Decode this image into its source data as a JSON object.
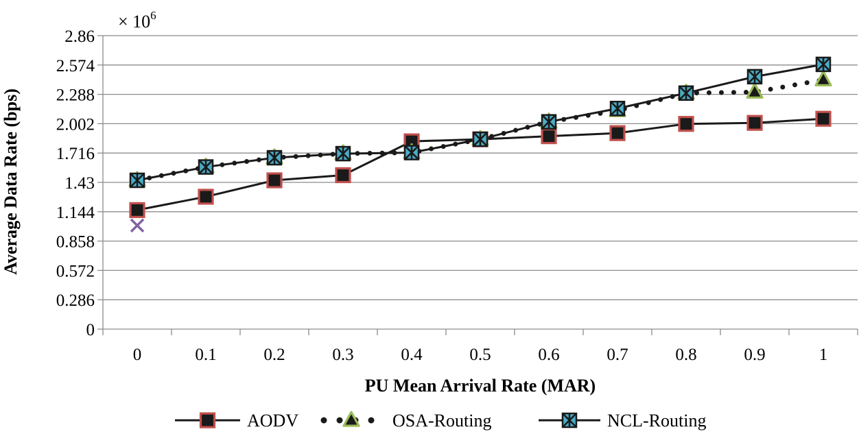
{
  "chart_data": {
    "type": "line",
    "multiplier_label": "× 10",
    "multiplier_exponent": "6",
    "xlabel": "PU Mean Arrival Rate (MAR)",
    "ylabel": "Average Data Rate (bps)",
    "x": [
      0,
      0.1,
      0.2,
      0.3,
      0.4,
      0.5,
      0.6,
      0.7,
      0.8,
      0.9,
      1
    ],
    "x_tick_labels": [
      "0",
      "0.1",
      "0.2",
      "0.3",
      "0.4",
      "0.5",
      "0.6",
      "0.7",
      "0.8",
      "0.9",
      "1"
    ],
    "y_ticks": [
      0,
      0.286,
      0.572,
      0.858,
      1.144,
      1.43,
      1.716,
      2.002,
      2.288,
      2.574,
      2.86
    ],
    "y_tick_labels": [
      "0",
      "0.286",
      "0.572",
      "0.858",
      "1.144",
      "1.43",
      "1.716",
      "2.002",
      "2.288",
      "2.574",
      "2.86"
    ],
    "ylim": [
      0,
      2.86
    ],
    "grid": true,
    "legend_position": "bottom",
    "series": [
      {
        "name": "AODV",
        "line_style": "solid",
        "marker": "square",
        "marker_fill": "#1a1a1a",
        "marker_edge": "#c0504d",
        "values": [
          1.16,
          1.29,
          1.45,
          1.5,
          1.83,
          1.85,
          1.88,
          1.91,
          2.0,
          2.01,
          2.05
        ]
      },
      {
        "name": "OSA-Routing",
        "line_style": "dotted",
        "marker": "triangle",
        "marker_fill": "#1a1a1a",
        "marker_edge": "#9bbb59",
        "values": [
          1.45,
          1.58,
          1.67,
          1.71,
          1.72,
          1.85,
          2.02,
          2.13,
          2.3,
          2.31,
          2.43
        ]
      },
      {
        "name": "NCL-Routing",
        "line_style": "solid",
        "marker": "star",
        "marker_fill": "#1a1a1a",
        "marker_edge": "#4bacc6",
        "values": [
          1.45,
          1.58,
          1.67,
          1.71,
          1.72,
          1.85,
          2.02,
          2.15,
          2.3,
          2.46,
          2.58
        ]
      }
    ],
    "annotations": [
      {
        "type": "x-marker",
        "x": 0,
        "y": 1.01,
        "color": "#8064a2"
      }
    ]
  }
}
